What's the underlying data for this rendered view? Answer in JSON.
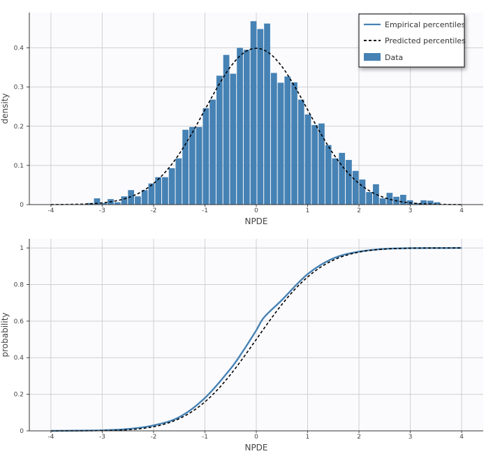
{
  "colors": {
    "bars": "#4682b4",
    "empirical": "#4682b4",
    "predicted": "#000000",
    "plot_bg": "#fbfbfe",
    "grid": "#d0d0d0"
  },
  "chart_data": [
    {
      "type": "bar",
      "xlabel": "NPDE",
      "ylabel": "density",
      "xlim": [
        -4.42,
        4.42
      ],
      "ylim": [
        0,
        0.49
      ],
      "xticks": [
        "-4",
        "-3",
        "-2",
        "-1",
        "0",
        "1",
        "2",
        "3",
        "4"
      ],
      "yticks": [
        "0",
        "0.1",
        "0.2",
        "0.3",
        "0.4"
      ],
      "grid": true,
      "legend": {
        "position": "top-right",
        "entries": [
          "Empirical percentiles",
          "Predicted percentiles",
          "Data"
        ]
      },
      "histogram": {
        "name": "Data",
        "bin_start": -3.3,
        "bin_width": 0.1325,
        "values": [
          0.004,
          0.016,
          0.004,
          0.014,
          0.006,
          0.021,
          0.037,
          0.021,
          0.037,
          0.054,
          0.07,
          0.07,
          0.093,
          0.118,
          0.191,
          0.198,
          0.198,
          0.246,
          0.268,
          0.329,
          0.382,
          0.334,
          0.4,
          0.395,
          0.468,
          0.448,
          0.462,
          0.336,
          0.311,
          0.327,
          0.312,
          0.268,
          0.23,
          0.203,
          0.207,
          0.152,
          0.118,
          0.132,
          0.114,
          0.086,
          0.064,
          0.032,
          0.052,
          0.016,
          0.03,
          0.02,
          0.025,
          0.011,
          0.004,
          0.011,
          0.01,
          0.006
        ]
      },
      "series": [
        {
          "name": "Predicted percentiles",
          "style": "dashed",
          "x": [
            -4,
            -3.75,
            -3.5,
            -3.25,
            -3,
            -2.75,
            -2.5,
            -2.25,
            -2,
            -1.75,
            -1.5,
            -1.25,
            -1,
            -0.75,
            -0.5,
            -0.25,
            0,
            0.25,
            0.5,
            0.75,
            1,
            1.25,
            1.5,
            1.75,
            2,
            2.25,
            2.5,
            2.75,
            3,
            3.25,
            3.5,
            3.75,
            4
          ],
          "y": [
            0.0001,
            0.0004,
            0.0009,
            0.002,
            0.0044,
            0.0091,
            0.0175,
            0.0317,
            0.054,
            0.0863,
            0.1295,
            0.1826,
            0.242,
            0.3011,
            0.3521,
            0.3867,
            0.3989,
            0.3867,
            0.3521,
            0.3011,
            0.242,
            0.1826,
            0.1295,
            0.0863,
            0.054,
            0.0317,
            0.0175,
            0.0091,
            0.0044,
            0.002,
            0.0009,
            0.0004,
            0.0001
          ]
        }
      ]
    },
    {
      "type": "line",
      "xlabel": "NPDE",
      "ylabel": "probability",
      "xlim": [
        -4.42,
        4.42
      ],
      "ylim": [
        0,
        1.05
      ],
      "xticks": [
        "-4",
        "-3",
        "-2",
        "-1",
        "0",
        "1",
        "2",
        "3",
        "4"
      ],
      "yticks": [
        "0",
        "0.2",
        "0.4",
        "0.6",
        "0.8",
        "1"
      ],
      "grid": true,
      "series": [
        {
          "name": "Empirical percentiles",
          "style": "solid",
          "x": [
            -4,
            -3,
            -2.5,
            -2,
            -1.5,
            -1,
            -0.5,
            -0.25,
            0,
            0.15,
            0.5,
            1,
            1.5,
            2,
            2.5,
            3,
            4
          ],
          "y": [
            0,
            0.003,
            0.01,
            0.03,
            0.075,
            0.18,
            0.34,
            0.44,
            0.55,
            0.62,
            0.716,
            0.857,
            0.943,
            0.98,
            0.995,
            0.999,
            1
          ]
        },
        {
          "name": "Predicted percentiles",
          "style": "dashed",
          "x": [
            -4,
            -3.75,
            -3.5,
            -3.25,
            -3,
            -2.75,
            -2.5,
            -2.25,
            -2,
            -1.75,
            -1.5,
            -1.25,
            -1,
            -0.75,
            -0.5,
            -0.25,
            0,
            0.25,
            0.5,
            0.75,
            1,
            1.25,
            1.5,
            1.75,
            2,
            2.25,
            2.5,
            2.75,
            3,
            3.25,
            3.5,
            3.75,
            4
          ],
          "y": [
            0,
            0.0001,
            0.0002,
            0.0006,
            0.0013,
            0.003,
            0.0062,
            0.0122,
            0.0228,
            0.0401,
            0.0668,
            0.1056,
            0.1587,
            0.2266,
            0.3085,
            0.4013,
            0.5,
            0.5987,
            0.6915,
            0.7734,
            0.8413,
            0.8944,
            0.9332,
            0.9599,
            0.9772,
            0.9878,
            0.9938,
            0.997,
            0.9987,
            0.9994,
            0.9998,
            0.9999,
            1
          ]
        }
      ]
    }
  ]
}
